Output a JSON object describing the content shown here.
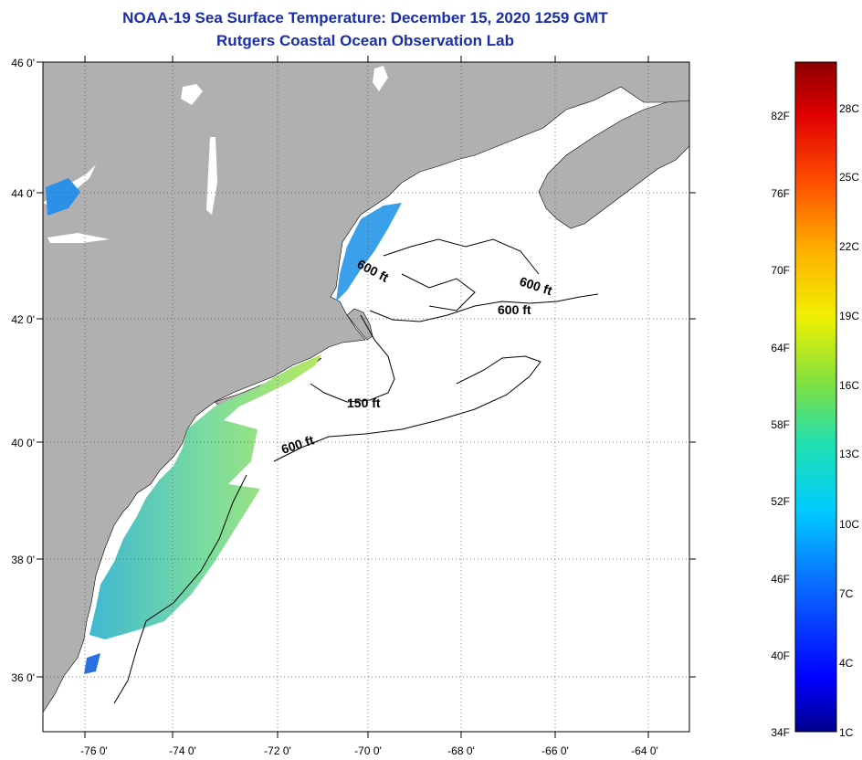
{
  "title": {
    "line1": "NOAA-19 Sea Surface Temperature:  December 15, 2020 1259 GMT",
    "line2": "Rutgers Coastal Ocean Observation Lab"
  },
  "map": {
    "lat_labels": [
      "46 0'",
      "44 0'",
      "42 0'",
      "40 0'",
      "38 0'",
      "36 0'"
    ],
    "lon_labels": [
      "-76 0'",
      "-74 0'",
      "-72 0'",
      "-70 0'",
      "-68 0'",
      "-66 0'",
      "-64 0'"
    ],
    "contour_labels": [
      "600 ft",
      "600 ft",
      "600 ft",
      "150 ft",
      "600 ft"
    ],
    "colors": {
      "land": "#b0b0b0",
      "ocean": "#ffffff",
      "contour": "#000000"
    }
  },
  "colorbar": {
    "fahrenheit_labels": [
      "82F",
      "76F",
      "70F",
      "64F",
      "58F",
      "52F",
      "46F",
      "40F",
      "34F"
    ],
    "celsius_labels": [
      "28C",
      "25C",
      "22C",
      "19C",
      "16C",
      "13C",
      "10C",
      "7C",
      "4C",
      "1C"
    ]
  }
}
